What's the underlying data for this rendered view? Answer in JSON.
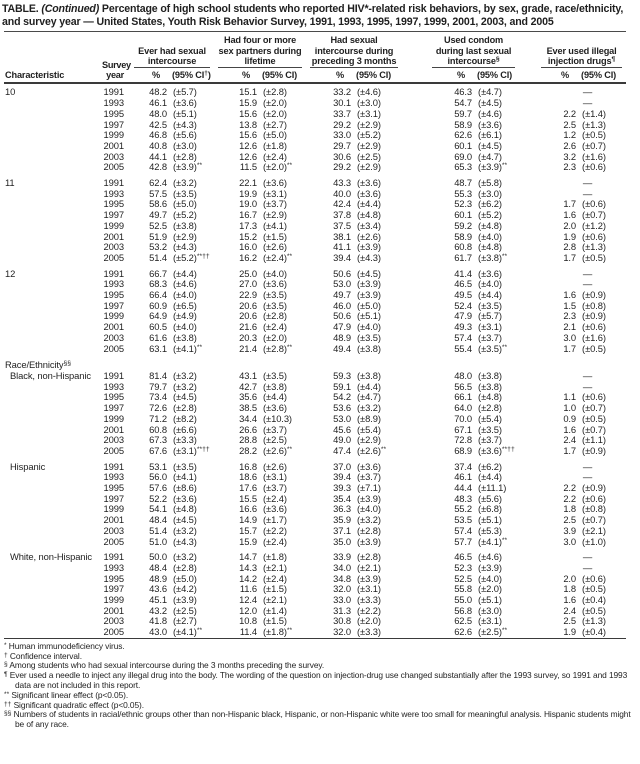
{
  "colors": {
    "background": "#ffffff",
    "text": "#1f1f1f",
    "rule": "#3a3a3a"
  },
  "title": {
    "prefix": "TABLE. ",
    "continued": "(Continued)",
    "rest": " Percentage of high school students who reported HIV*-related risk behaviors, by sex, grade, race/ethnicity, and survey year — United States, Youth Risk Behavior Survey, 1991, 1993, 1995, 1997, 1999, 2001, 2003, and 2005"
  },
  "table": {
    "columns": {
      "characteristic": "Characteristic",
      "survey_year": "Survey year",
      "groups": [
        {
          "label": "Ever had sexual intercourse",
          "pct": "%",
          "ci": "(95% CI^†^)"
        },
        {
          "label": "Had four or more sex partners during lifetime",
          "pct": "%",
          "ci": "(95% CI)"
        },
        {
          "label": "Had sexual intercourse during preceding 3 months",
          "pct": "%",
          "ci": "(95% CI)"
        },
        {
          "label": "Used condom during last sexual intercourse^§^",
          "pct": "%",
          "ci": "(95% CI)"
        },
        {
          "label": "Ever used illegal injection drugs^¶^",
          "pct": "%",
          "ci": "(95% CI)"
        }
      ]
    },
    "sections": [
      {
        "label": "10",
        "indent": false,
        "gap": false,
        "rows": [
          [
            "1991",
            "48.2",
            "(±5.7)",
            "15.1",
            "(±2.8)",
            "33.2",
            "(±4.6)",
            "46.3",
            "(±4.7)",
            "—",
            ""
          ],
          [
            "1993",
            "46.1",
            "(±3.6)",
            "15.9",
            "(±2.0)",
            "30.1",
            "(±3.0)",
            "54.7",
            "(±4.5)",
            "—",
            ""
          ],
          [
            "1995",
            "48.0",
            "(±5.1)",
            "15.6",
            "(±2.0)",
            "33.7",
            "(±3.1)",
            "59.7",
            "(±4.6)",
            "2.2",
            "(±1.4)"
          ],
          [
            "1997",
            "42.5",
            "(±4.3)",
            "13.8",
            "(±2.7)",
            "29.2",
            "(±2.9)",
            "58.9",
            "(±3.6)",
            "2.5",
            "(±1.3)"
          ],
          [
            "1999",
            "46.8",
            "(±5.6)",
            "15.6",
            "(±5.0)",
            "33.0",
            "(±5.2)",
            "62.6",
            "(±6.1)",
            "1.2",
            "(±0.5)"
          ],
          [
            "2001",
            "40.8",
            "(±3.0)",
            "12.6",
            "(±1.8)",
            "29.7",
            "(±2.9)",
            "60.1",
            "(±4.5)",
            "2.6",
            "(±0.7)"
          ],
          [
            "2003",
            "44.1",
            "(±2.8)",
            "12.6",
            "(±2.4)",
            "30.6",
            "(±2.5)",
            "69.0",
            "(±4.7)",
            "3.2",
            "(±1.6)"
          ],
          [
            "2005",
            "42.8",
            "(±3.9)^**^",
            "11.5",
            "(±2.0)^**^",
            "29.2",
            "(±2.9)",
            "65.3",
            "(±3.9)^**^",
            "2.3",
            "(±0.6)"
          ]
        ]
      },
      {
        "label": "11",
        "indent": false,
        "gap": true,
        "rows": [
          [
            "1991",
            "62.4",
            "(±3.2)",
            "22.1",
            "(±3.6)",
            "43.3",
            "(±3.6)",
            "48.7",
            "(±5.8)",
            "—",
            ""
          ],
          [
            "1993",
            "57.5",
            "(±3.5)",
            "19.9",
            "(±3.1)",
            "40.0",
            "(±3.6)",
            "55.3",
            "(±3.0)",
            "—",
            ""
          ],
          [
            "1995",
            "58.6",
            "(±5.0)",
            "19.0",
            "(±3.7)",
            "42.4",
            "(±4.4)",
            "52.3",
            "(±6.2)",
            "1.7",
            "(±0.6)"
          ],
          [
            "1997",
            "49.7",
            "(±5.2)",
            "16.7",
            "(±2.9)",
            "37.8",
            "(±4.8)",
            "60.1",
            "(±5.2)",
            "1.6",
            "(±0.7)"
          ],
          [
            "1999",
            "52.5",
            "(±3.8)",
            "17.3",
            "(±4.1)",
            "37.5",
            "(±3.4)",
            "59.2",
            "(±4.8)",
            "2.0",
            "(±1.2)"
          ],
          [
            "2001",
            "51.9",
            "(±2.9)",
            "15.2",
            "(±1.5)",
            "38.1",
            "(±2.6)",
            "58.9",
            "(±4.0)",
            "1.9",
            "(±0.6)"
          ],
          [
            "2003",
            "53.2",
            "(±4.3)",
            "16.0",
            "(±2.6)",
            "41.1",
            "(±3.9)",
            "60.8",
            "(±4.8)",
            "2.8",
            "(±1.3)"
          ],
          [
            "2005",
            "51.4",
            "(±5.2)^**††^",
            "16.2",
            "(±2.4)^**^",
            "39.4",
            "(±4.3)",
            "61.7",
            "(±3.8)^**^",
            "1.7",
            "(±0.5)"
          ]
        ]
      },
      {
        "label": "12",
        "indent": false,
        "gap": true,
        "rows": [
          [
            "1991",
            "66.7",
            "(±4.4)",
            "25.0",
            "(±4.0)",
            "50.6",
            "(±4.5)",
            "41.4",
            "(±3.6)",
            "—",
            ""
          ],
          [
            "1993",
            "68.3",
            "(±4.6)",
            "27.0",
            "(±3.6)",
            "53.0",
            "(±3.9)",
            "46.5",
            "(±4.0)",
            "—",
            ""
          ],
          [
            "1995",
            "66.4",
            "(±4.0)",
            "22.9",
            "(±3.5)",
            "49.7",
            "(±3.9)",
            "49.5",
            "(±4.4)",
            "1.6",
            "(±0.9)"
          ],
          [
            "1997",
            "60.9",
            "(±6.5)",
            "20.6",
            "(±3.5)",
            "46.0",
            "(±5.0)",
            "52.4",
            "(±3.5)",
            "1.5",
            "(±0.8)"
          ],
          [
            "1999",
            "64.9",
            "(±4.9)",
            "20.6",
            "(±2.8)",
            "50.6",
            "(±5.1)",
            "47.9",
            "(±5.7)",
            "2.3",
            "(±0.9)"
          ],
          [
            "2001",
            "60.5",
            "(±4.0)",
            "21.6",
            "(±2.4)",
            "47.9",
            "(±4.0)",
            "49.3",
            "(±3.1)",
            "2.1",
            "(±0.6)"
          ],
          [
            "2003",
            "61.6",
            "(±3.8)",
            "20.3",
            "(±2.0)",
            "48.9",
            "(±3.5)",
            "57.4",
            "(±3.7)",
            "3.0",
            "(±1.6)"
          ],
          [
            "2005",
            "63.1",
            "(±4.1)^**^",
            "21.4",
            "(±2.8)^**^",
            "49.4",
            "(±3.8)",
            "55.4",
            "(±3.5)^**^",
            "1.7",
            "(±0.5)"
          ]
        ]
      },
      {
        "type": "divider",
        "label": "Race/Ethnicity^§§^"
      },
      {
        "label": "Black, non-Hispanic",
        "indent": true,
        "gap": false,
        "rows": [
          [
            "1991",
            "81.4",
            "(±3.2)",
            "43.1",
            "(±3.5)",
            "59.3",
            "(±3.8)",
            "48.0",
            "(±3.8)",
            "—",
            ""
          ],
          [
            "1993",
            "79.7",
            "(±3.2)",
            "42.7",
            "(±3.8)",
            "59.1",
            "(±4.4)",
            "56.5",
            "(±3.8)",
            "—",
            ""
          ],
          [
            "1995",
            "73.4",
            "(±4.5)",
            "35.6",
            "(±4.4)",
            "54.2",
            "(±4.7)",
            "66.1",
            "(±4.8)",
            "1.1",
            "(±0.6)"
          ],
          [
            "1997",
            "72.6",
            "(±2.8)",
            "38.5",
            "(±3.6)",
            "53.6",
            "(±3.2)",
            "64.0",
            "(±2.8)",
            "1.0",
            "(±0.7)"
          ],
          [
            "1999",
            "71.2",
            "(±8.2)",
            "34.4",
            "(±10.3)",
            "53.0",
            "(±8.9)",
            "70.0",
            "(±5.4)",
            "0.9",
            "(±0.5)"
          ],
          [
            "2001",
            "60.8",
            "(±6.6)",
            "26.6",
            "(±3.7)",
            "45.6",
            "(±5.4)",
            "67.1",
            "(±3.5)",
            "1.6",
            "(±0.7)"
          ],
          [
            "2003",
            "67.3",
            "(±3.3)",
            "28.8",
            "(±2.5)",
            "49.0",
            "(±2.9)",
            "72.8",
            "(±3.7)",
            "2.4",
            "(±1.1)"
          ],
          [
            "2005",
            "67.6",
            "(±3.1)^**††^",
            "28.2",
            "(±2.6)^**^",
            "47.4",
            "(±2.6)^**^",
            "68.9",
            "(±3.6)^**††^",
            "1.7",
            "(±0.9)"
          ]
        ]
      },
      {
        "label": "Hispanic",
        "indent": true,
        "gap": true,
        "rows": [
          [
            "1991",
            "53.1",
            "(±3.5)",
            "16.8",
            "(±2.6)",
            "37.0",
            "(±3.6)",
            "37.4",
            "(±6.2)",
            "—",
            ""
          ],
          [
            "1993",
            "56.0",
            "(±4.1)",
            "18.6",
            "(±3.1)",
            "39.4",
            "(±3.7)",
            "46.1",
            "(±4.4)",
            "—",
            ""
          ],
          [
            "1995",
            "57.6",
            "(±8.6)",
            "17.6",
            "(±3.7)",
            "39.3",
            "(±7.1)",
            "44.4",
            "(±11.1)",
            "2.2",
            "(±0.9)"
          ],
          [
            "1997",
            "52.2",
            "(±3.6)",
            "15.5",
            "(±2.4)",
            "35.4",
            "(±3.9)",
            "48.3",
            "(±5.6)",
            "2.2",
            "(±0.6)"
          ],
          [
            "1999",
            "54.1",
            "(±4.8)",
            "16.6",
            "(±3.6)",
            "36.3",
            "(±4.0)",
            "55.2",
            "(±6.8)",
            "1.8",
            "(±0.8)"
          ],
          [
            "2001",
            "48.4",
            "(±4.5)",
            "14.9",
            "(±1.7)",
            "35.9",
            "(±3.2)",
            "53.5",
            "(±5.1)",
            "2.5",
            "(±0.7)"
          ],
          [
            "2003",
            "51.4",
            "(±3.2)",
            "15.7",
            "(±2.2)",
            "37.1",
            "(±2.8)",
            "57.4",
            "(±5.3)",
            "3.9",
            "(±2.1)"
          ],
          [
            "2005",
            "51.0",
            "(±4.3)",
            "15.9",
            "(±2.4)",
            "35.0",
            "(±3.9)",
            "57.7",
            "(±4.1)^**^",
            "3.0",
            "(±1.0)"
          ]
        ]
      },
      {
        "label": "White, non-Hispanic",
        "indent": true,
        "gap": true,
        "rows": [
          [
            "1991",
            "50.0",
            "(±3.2)",
            "14.7",
            "(±1.8)",
            "33.9",
            "(±2.8)",
            "46.5",
            "(±4.6)",
            "—",
            ""
          ],
          [
            "1993",
            "48.4",
            "(±2.8)",
            "14.3",
            "(±2.1)",
            "34.0",
            "(±2.1)",
            "52.3",
            "(±3.9)",
            "—",
            ""
          ],
          [
            "1995",
            "48.9",
            "(±5.0)",
            "14.2",
            "(±2.4)",
            "34.8",
            "(±3.9)",
            "52.5",
            "(±4.0)",
            "2.0",
            "(±0.6)"
          ],
          [
            "1997",
            "43.6",
            "(±4.2)",
            "11.6",
            "(±1.5)",
            "32.0",
            "(±3.1)",
            "55.8",
            "(±2.0)",
            "1.8",
            "(±0.5)"
          ],
          [
            "1999",
            "45.1",
            "(±3.9)",
            "12.4",
            "(±2.1)",
            "33.0",
            "(±3.3)",
            "55.0",
            "(±5.1)",
            "1.6",
            "(±0.4)"
          ],
          [
            "2001",
            "43.2",
            "(±2.5)",
            "12.0",
            "(±1.4)",
            "31.3",
            "(±2.2)",
            "56.8",
            "(±3.0)",
            "2.4",
            "(±0.5)"
          ],
          [
            "2003",
            "41.8",
            "(±2.7)",
            "10.8",
            "(±1.5)",
            "30.8",
            "(±2.0)",
            "62.5",
            "(±3.1)",
            "2.5",
            "(±1.3)"
          ],
          [
            "2005",
            "43.0",
            "(±4.1)^**^",
            "11.4",
            "(±1.8)^**^",
            "32.0",
            "(±3.3)",
            "62.6",
            "(±2.5)^**^",
            "1.9",
            "(±0.4)"
          ]
        ]
      }
    ]
  },
  "footnotes": [
    {
      "marker": "*",
      "text": "Human immunodeficiency virus."
    },
    {
      "marker": "†",
      "text": "Confidence interval."
    },
    {
      "marker": "§",
      "text": "Among students who had sexual intercourse during the 3 months preceding the survey."
    },
    {
      "marker": "¶",
      "text": "Ever used a needle to inject any illegal drug into the body. The wording of the question on injection-drug use changed substantially after the 1993 survey, so 1991 and 1993 data are not included in this report."
    },
    {
      "marker": "**",
      "text": "Significant linear effect (p<0.05)."
    },
    {
      "marker": "††",
      "text": "Significant quadratic effect (p<0.05)."
    },
    {
      "marker": "§§",
      "text": "Numbers of students in racial/ethnic groups other than non-Hispanic black, Hispanic, or non-Hispanic white were too small for meaningful analysis. Hispanic students might be of any race."
    }
  ]
}
